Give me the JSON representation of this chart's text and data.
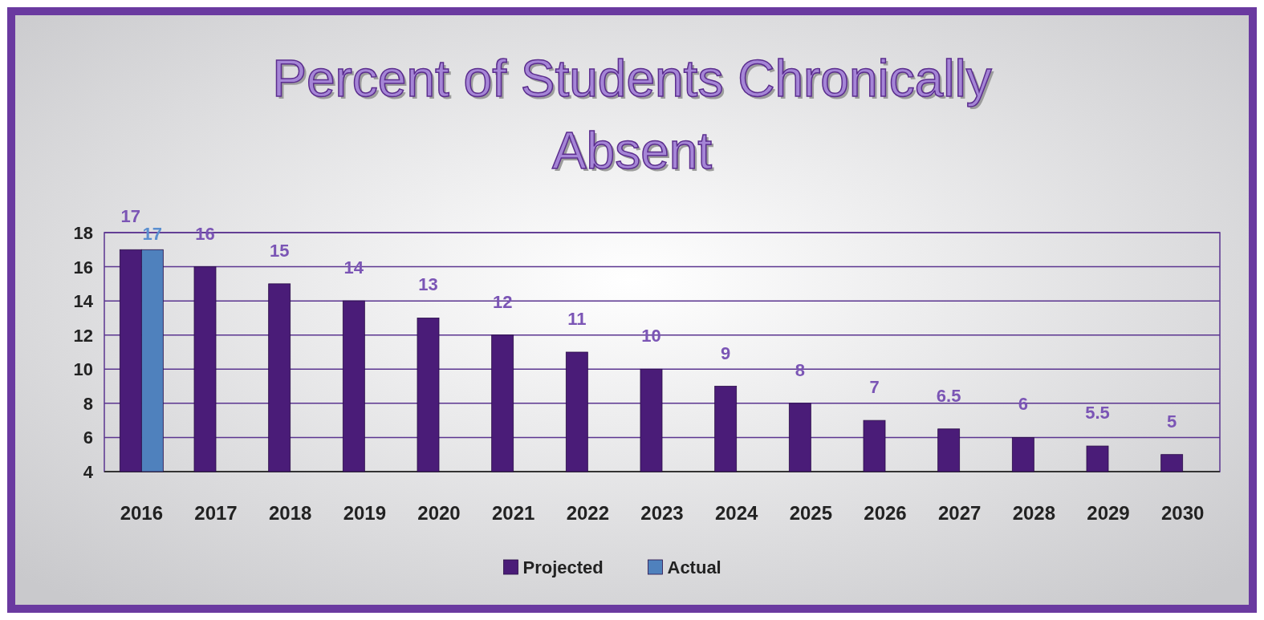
{
  "chart_data": {
    "type": "bar",
    "title": "Percent of Students Chronically Absent",
    "categories": [
      "2016",
      "2017",
      "2018",
      "2019",
      "2020",
      "2021",
      "2022",
      "2023",
      "2024",
      "2025",
      "2026",
      "2027",
      "2028",
      "2029",
      "2030"
    ],
    "series": [
      {
        "name": "Projected",
        "color": "#4a1c78",
        "values": [
          17,
          16,
          15,
          14,
          13,
          12,
          11,
          10,
          9,
          8,
          7,
          6.5,
          6,
          5.5,
          5
        ]
      },
      {
        "name": "Actual",
        "color": "#4f81bd",
        "values": [
          17,
          null,
          null,
          null,
          null,
          null,
          null,
          null,
          null,
          null,
          null,
          null,
          null,
          null,
          null
        ]
      }
    ],
    "ylim": [
      4,
      18
    ],
    "yticks": [
      4,
      6,
      8,
      10,
      12,
      14,
      16,
      18
    ],
    "grid": "y",
    "legend": "bottom",
    "data_labels": true
  }
}
